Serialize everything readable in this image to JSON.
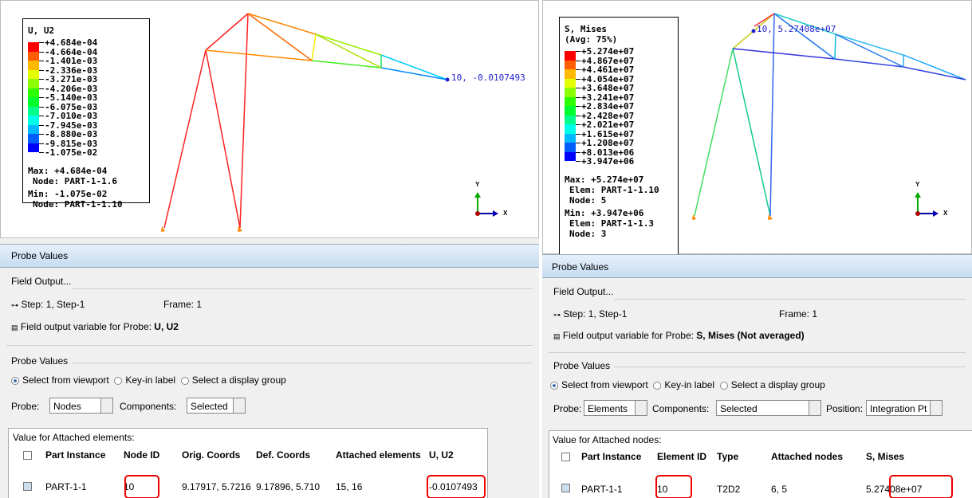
{
  "left": {
    "viewport": {
      "legend": {
        "title": "U, U2",
        "levels": [
          "+4.684e-04",
          "-4.664e-04",
          "-1.401e-03",
          "-2.336e-03",
          "-3.271e-03",
          "-4.206e-03",
          "-5.140e-03",
          "-6.075e-03",
          "-7.010e-03",
          "-7.945e-03",
          "-8.880e-03",
          "-9.815e-03",
          "-1.075e-02"
        ],
        "max": "Max: +4.684e-04",
        "max_lines": [
          "Node: PART-1-1.6"
        ],
        "min": "Min: -1.075e-02",
        "min_lines": [
          "Node: PART-1-1.10"
        ]
      },
      "probe_label": "10, -0.0107493",
      "axis_y": "Y",
      "axis_x": "X"
    },
    "probe": {
      "header": "Probe Values",
      "field_output": "Field Output...",
      "step": "Step: 1, Step-1",
      "frame": "Frame: 1",
      "field_var_label": "Field output variable for Probe:",
      "field_var": "U, U2",
      "group": "Probe Values",
      "radios": [
        "Select from viewport",
        "Key-in label",
        "Select a display group"
      ],
      "probe_label": "Probe:",
      "probe_value": "Nodes",
      "components_label": "Components:",
      "components_value": "Selected",
      "table_title": "Value for Attached elements:",
      "columns": [
        "Part Instance",
        "Node ID",
        "Orig. Coords",
        "Def. Coords",
        "Attached elements",
        "U, U2"
      ],
      "row": [
        "PART-1-1",
        "10",
        "9.17917, 5.7216",
        "9.17896, 5.710",
        "15, 16",
        "-0.0107493"
      ]
    }
  },
  "right": {
    "viewport": {
      "legend": {
        "title": "S, Mises",
        "subtitle": "(Avg: 75%)",
        "levels": [
          "+5.274e+07",
          "+4.867e+07",
          "+4.461e+07",
          "+4.054e+07",
          "+3.648e+07",
          "+3.241e+07",
          "+2.834e+07",
          "+2.428e+07",
          "+2.021e+07",
          "+1.615e+07",
          "+1.208e+07",
          "+8.013e+06",
          "+3.947e+06"
        ],
        "max": "Max: +5.274e+07",
        "max_lines": [
          "Elem: PART-1-1.10",
          "Node: 5"
        ],
        "min": "Min: +3.947e+06",
        "min_lines": [
          "Elem: PART-1-1.3",
          "Node: 3"
        ]
      },
      "probe_label": "10, 5.27408e+07",
      "axis_y": "Y",
      "axis_x": "X"
    },
    "probe": {
      "header": "Probe Values",
      "field_output": "Field Output...",
      "step": "Step: 1, Step-1",
      "frame": "Frame: 1",
      "field_var_label": "Field output variable for Probe:",
      "field_var": "S, Mises (Not averaged)",
      "group": "Probe Values",
      "radios": [
        "Select from viewport",
        "Key-in label",
        "Select a display group"
      ],
      "probe_label": "Probe:",
      "probe_value": "Elements",
      "components_label": "Components:",
      "components_value": "Selected",
      "position_label": "Position:",
      "position_value": "Integration Pt",
      "table_title": "Value for Attached nodes:",
      "columns": [
        "Part Instance",
        "Element ID",
        "Type",
        "Attached nodes",
        "S, Mises"
      ],
      "row": [
        "PART-1-1",
        "10",
        "T2D2",
        "6, 5",
        "5.27408e+07"
      ]
    }
  }
}
